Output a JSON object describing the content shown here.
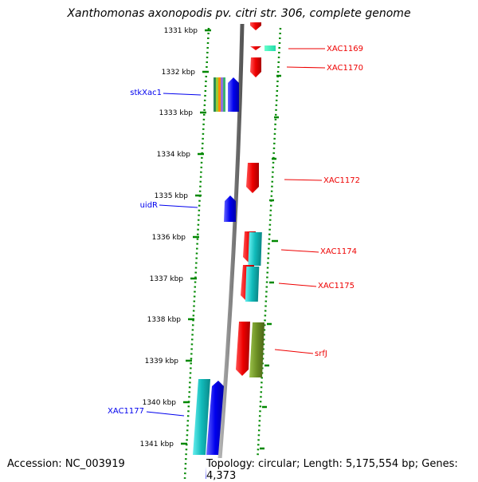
{
  "title": "Xanthomonas axonopodis pv. citri str. 306, complete genome",
  "footer": {
    "accession": "Accession: NC_003919",
    "summary": "Topology: circular; Length: 5,175,554 bp; Genes: 4,373"
  },
  "colors": {
    "red": "#ee0000",
    "blue": "#0000ee",
    "cyan": "#11bbbb",
    "olive": "#6b8e23",
    "aqua_green": "#22ddaa",
    "track_green": "#008800",
    "backbone": "#888888"
  },
  "scale": {
    "ticks": [
      "1331 kbp",
      "1332 kbp",
      "1333 kbp",
      "1334 kbp",
      "1335 kbp",
      "1336 kbp",
      "1337 kbp",
      "1338 kbp",
      "1339 kbp",
      "1340 kbp",
      "1341 kbp"
    ]
  },
  "labels": [
    {
      "text": "XAC1169",
      "color": "red"
    },
    {
      "text": "XAC1170",
      "color": "red"
    },
    {
      "text": "stkXac1",
      "color": "blue"
    },
    {
      "text": "XAC1172",
      "color": "red"
    },
    {
      "text": "uidR",
      "color": "blue"
    },
    {
      "text": "XAC1174",
      "color": "red"
    },
    {
      "text": "XAC1175",
      "color": "red"
    },
    {
      "text": "srfJ",
      "color": "red"
    },
    {
      "text": "XAC1177",
      "color": "blue"
    }
  ]
}
